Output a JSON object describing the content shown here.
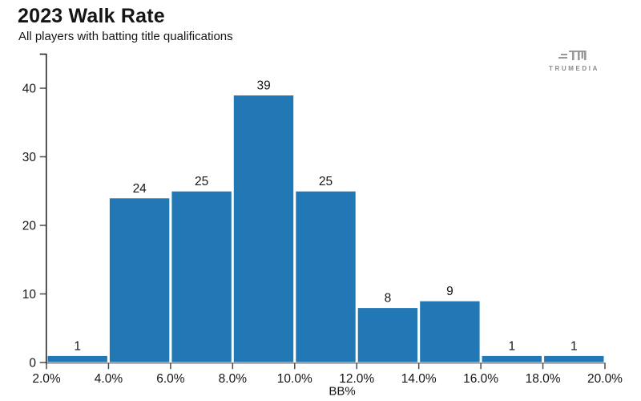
{
  "header": {
    "title": "2023 Walk Rate",
    "subtitle": "All players with batting title qualifications"
  },
  "logo": {
    "text": "TRUMEDIA"
  },
  "chart_data": {
    "type": "bar",
    "subtype": "histogram",
    "title": "2023 Walk Rate",
    "subtitle": "All players with batting title qualifications",
    "xlabel": "BB%",
    "ylabel": "",
    "bin_edges_pct": [
      2,
      4,
      6,
      8,
      10,
      12,
      14,
      16,
      18,
      20
    ],
    "categories": [
      "2-4%",
      "4-6%",
      "6-8%",
      "8-10%",
      "10-12%",
      "12-14%",
      "14-16%",
      "16-18%",
      "18-20%"
    ],
    "values": [
      1,
      24,
      25,
      39,
      25,
      8,
      9,
      1,
      1
    ],
    "bar_labels": [
      "1",
      "24",
      "25",
      "39",
      "25",
      "8",
      "9",
      "1",
      "1"
    ],
    "x_tick_values": [
      2,
      4,
      6,
      8,
      10,
      12,
      14,
      16,
      18,
      20
    ],
    "x_tick_labels": [
      "2.0%",
      "4.0%",
      "6.0%",
      "8.0%",
      "10.0%",
      "12.0%",
      "14.0%",
      "16.0%",
      "18.0%",
      "20.0%"
    ],
    "y_tick_values": [
      0,
      10,
      20,
      30,
      40
    ],
    "y_tick_labels": [
      "0",
      "10",
      "20",
      "30",
      "40"
    ],
    "xlim_pct": [
      2,
      20
    ],
    "ylim": [
      0,
      45
    ],
    "grid": false,
    "legend": "none",
    "colors": {
      "bar": "#2277b5",
      "bar_edge": "#ffffff",
      "y_axis": "#1a1a1a",
      "x_axis": "#8a8a8a",
      "tick": "#4a4a4a",
      "text": "#151515",
      "logo": "#999999"
    }
  }
}
